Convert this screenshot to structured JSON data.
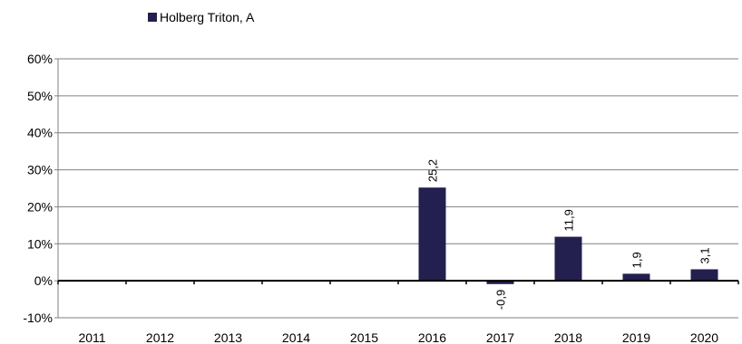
{
  "chart_data": {
    "type": "bar",
    "categories": [
      "2011",
      "2012",
      "2013",
      "2014",
      "2015",
      "2016",
      "2017",
      "2018",
      "2019",
      "2020"
    ],
    "series": [
      {
        "name": "Holberg Triton, A",
        "values": [
          null,
          null,
          null,
          null,
          null,
          25.2,
          -0.9,
          11.9,
          1.9,
          3.1
        ],
        "data_labels": [
          "",
          "",
          "",
          "",
          "",
          "25,2",
          "-0,9",
          "11,9",
          "1,9",
          "3,1"
        ]
      }
    ],
    "ylim": [
      -10,
      60
    ],
    "yticks": [
      -10,
      0,
      10,
      20,
      30,
      40,
      50,
      60
    ],
    "ytick_labels": [
      "-10%",
      "0%",
      "10%",
      "20%",
      "30%",
      "40%",
      "50%",
      "60%"
    ],
    "grid": true,
    "legend_position": "top-left",
    "bar_color": "#231f4f"
  }
}
